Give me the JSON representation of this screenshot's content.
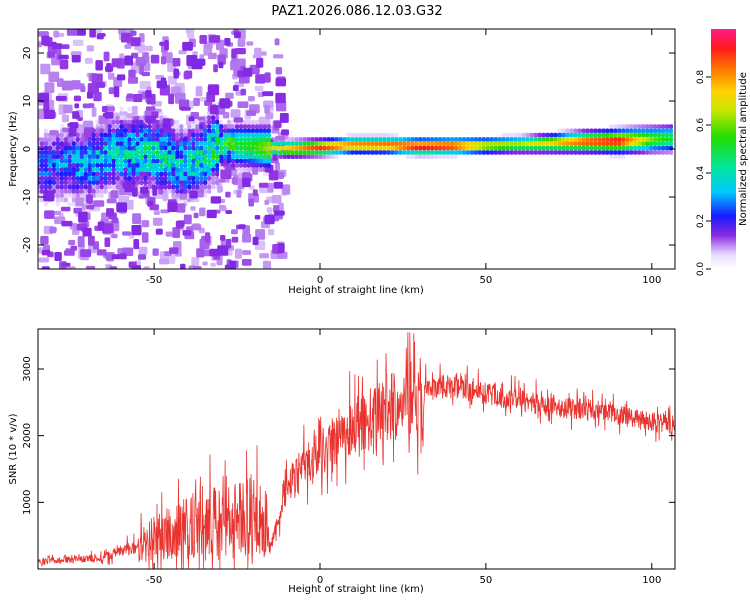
{
  "title": "PAZ1.2026.086.12.03.G32",
  "chart_data": [
    {
      "type": "heatmap",
      "title": "PAZ1.2026.086.12.03.G32",
      "xlabel": "Height of straight line (km)",
      "ylabel": "Frequency (Hz)",
      "xlim": [
        -85,
        107
      ],
      "ylim": [
        -25,
        25
      ],
      "xticks": [
        -50,
        0,
        50,
        100
      ],
      "xtick_labels": [
        "-50",
        "0",
        "50",
        "100"
      ],
      "yticks": [
        -20,
        -10,
        0,
        10,
        20
      ],
      "ytick_labels": [
        "-20",
        "-10",
        "0",
        "10",
        "20"
      ],
      "colorbar": {
        "label": "Normalized spectral amplitude",
        "range": [
          0,
          1
        ],
        "ticks": [
          0,
          0.2,
          0.4,
          0.6,
          0.8
        ],
        "tick_labels": [
          "0.0",
          "0.2",
          "0.4",
          "0.6",
          "0.8"
        ]
      },
      "ridge": {
        "x": [
          -85,
          -70,
          -60,
          -50,
          -40,
          -30,
          -20,
          -10,
          0,
          10,
          20,
          30,
          40,
          50,
          60,
          70,
          80,
          90,
          100,
          107
        ],
        "freq_hz": [
          -4,
          -3,
          -0.5,
          -1,
          -3.5,
          1,
          0.5,
          0,
          0.3,
          0.8,
          0.8,
          0.5,
          0.6,
          0.7,
          0.9,
          1.2,
          1.5,
          1.6,
          2.0,
          2.2
        ],
        "amplitude": [
          0.22,
          0.3,
          0.35,
          0.4,
          0.35,
          0.45,
          0.55,
          0.75,
          0.9,
          0.85,
          0.88,
          0.98,
          0.95,
          0.7,
          0.65,
          0.75,
          0.9,
          0.95,
          0.6,
          0.5
        ]
      }
    },
    {
      "type": "line",
      "xlabel": "Height of straight line (km)",
      "ylabel": "SNR (10 * v/v)",
      "xlim": [
        -85,
        107
      ],
      "ylim": [
        0,
        3600
      ],
      "xticks": [
        -50,
        0,
        50,
        100
      ],
      "xtick_labels": [
        "-50",
        "0",
        "50",
        "100"
      ],
      "yticks": [
        1000,
        2000,
        3000
      ],
      "ytick_labels": [
        "1000",
        "2000",
        "3000"
      ],
      "color": "#e8332e",
      "x": [
        -85,
        -75,
        -65,
        -55,
        -45,
        -35,
        -25,
        -18,
        -15,
        -10,
        -5,
        0,
        5,
        10,
        15,
        20,
        25,
        28,
        30,
        32,
        35,
        40,
        50,
        60,
        70,
        80,
        90,
        100,
        107
      ],
      "y": [
        120,
        140,
        180,
        350,
        550,
        700,
        750,
        800,
        300,
        1250,
        1500,
        1700,
        1950,
        2100,
        2250,
        2400,
        2550,
        2600,
        2450,
        2800,
        2750,
        2750,
        2650,
        2550,
        2450,
        2400,
        2300,
        2200,
        2150
      ]
    }
  ]
}
